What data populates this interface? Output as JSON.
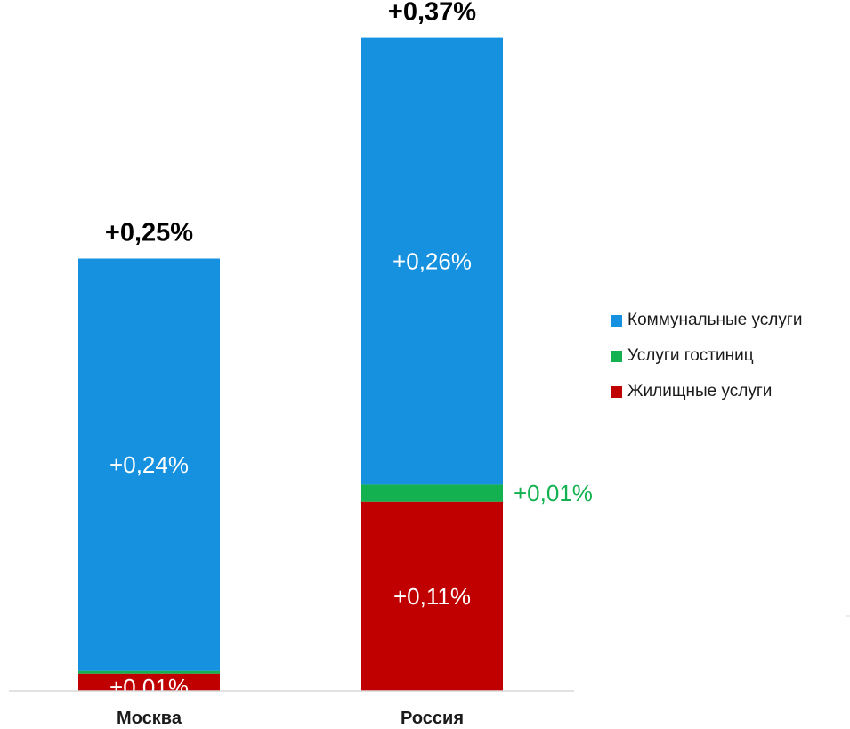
{
  "chart_data": {
    "type": "bar",
    "stacked": true,
    "categories": [
      "Москва",
      "Россия"
    ],
    "totals": [
      "+0,25%",
      "+0,37%"
    ],
    "series": [
      {
        "name": "Жилищные услуги",
        "values": [
          0.01,
          0.11
        ],
        "labels": [
          "",
          "+0,11%"
        ],
        "color": "#c00000",
        "label_color": "#ffffff"
      },
      {
        "name": "Услуги гостиниц",
        "values": [
          0.001,
          0.01
        ],
        "labels": [
          "",
          "+0,01%"
        ],
        "color": "#13b14f",
        "label_color": "#13b14f"
      },
      {
        "name": "Коммунальные услуги",
        "values": [
          0.24,
          0.26
        ],
        "labels": [
          "+0,24%",
          "+0,26%"
        ],
        "color": "#1591df",
        "label_color": "#ffffff"
      }
    ],
    "extra_labels": [
      {
        "category": "Москва",
        "text": "+0,01%",
        "color": "#ffffff"
      }
    ],
    "legend_position": "right",
    "legend_order": [
      "Коммунальные услуги",
      "Услуги гостиниц",
      "Жилищные услуги"
    ],
    "grid": false,
    "ylim": [
      0,
      0.38
    ]
  }
}
